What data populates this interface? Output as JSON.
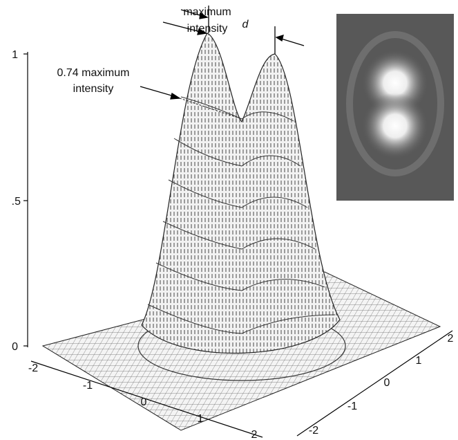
{
  "annotations": {
    "maximum_intensity": [
      "maximum",
      "intensity"
    ],
    "separation": "d",
    "fraction_intensity": [
      "0.74 maximum",
      "intensity"
    ]
  },
  "vertical_axis": {
    "ticks": [
      "1",
      ".5",
      "0"
    ]
  },
  "front_axis": {
    "ticks": [
      "-2",
      "-1",
      "0",
      "1",
      "2"
    ]
  },
  "side_axis": {
    "ticks": [
      "-2",
      "-1",
      "0",
      "1",
      "2"
    ]
  }
}
